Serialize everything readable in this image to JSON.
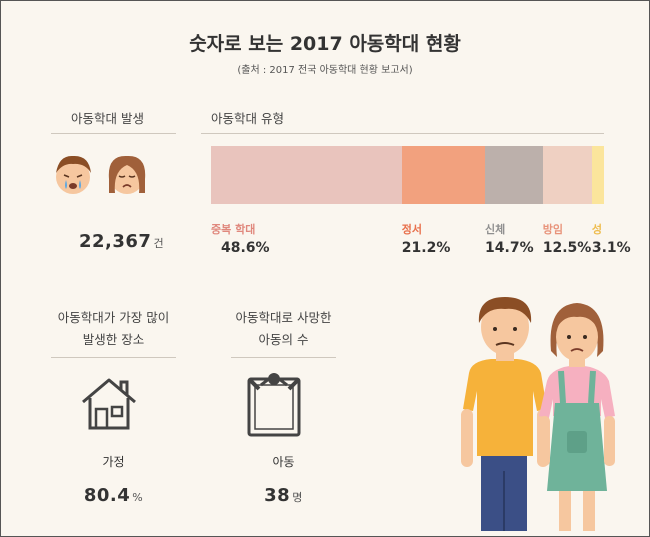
{
  "header": {
    "title": "숫자로 보는 2017 아동학대 현황",
    "source": "(출처 : 2017 전국 아동학대 현황 보고서)"
  },
  "occurrence": {
    "title": "아동학대 발생",
    "value": "22,367",
    "unit": "건"
  },
  "types": {
    "title": "아동학대 유형",
    "categories": [
      "중복 학대",
      "정서",
      "신체",
      "방임",
      "성"
    ],
    "values": [
      48.6,
      21.2,
      14.7,
      12.5,
      3.1
    ],
    "value_labels": [
      "48.6%",
      "21.2%",
      "14.7%",
      "12.5%",
      "3.1%"
    ],
    "colors": [
      "#e9c4bd",
      "#f2a17e",
      "#bcb0ab",
      "#efd0c2",
      "#fbe59c"
    ],
    "label_colors": [
      "#e0887d",
      "#e8704c",
      "#8f8f8f",
      "#e8937a",
      "#eebc4c"
    ]
  },
  "place": {
    "title_lines": [
      "아동학대가 가장 많이",
      "발생한 장소"
    ],
    "label": "가정",
    "value": 80.4,
    "unit": "%"
  },
  "deaths": {
    "title_lines": [
      "아동학대로 사망한",
      "아동의 수"
    ],
    "label": "아동",
    "value": 38,
    "unit": "명"
  }
}
